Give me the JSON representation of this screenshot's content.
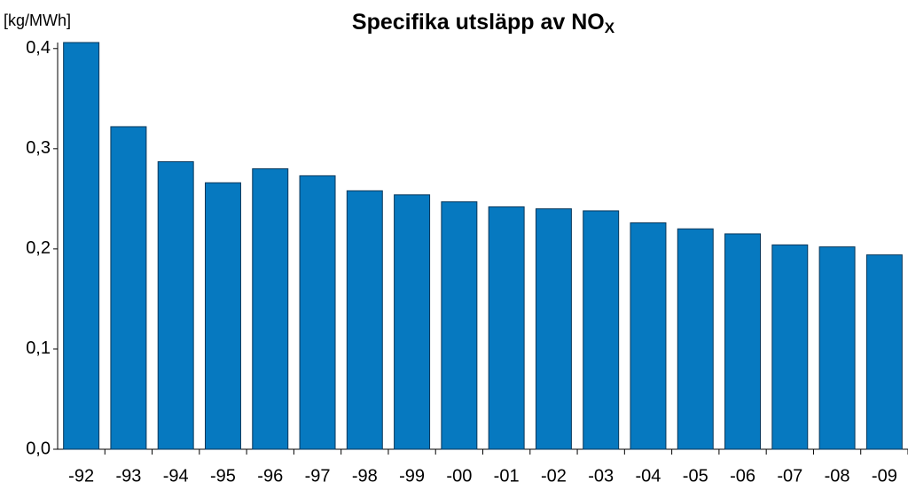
{
  "chart_data": {
    "type": "bar",
    "title": "Specifika utsläpp av NO",
    "title_subscript": "X",
    "y_axis_label": "[kg/MWh]",
    "categories": [
      "-92",
      "-93",
      "-94",
      "-95",
      "-96",
      "-97",
      "-98",
      "-99",
      "-00",
      "-01",
      "-02",
      "-03",
      "-04",
      "-05",
      "-06",
      "-07",
      "-08",
      "-09"
    ],
    "values": [
      0.406,
      0.322,
      0.287,
      0.266,
      0.28,
      0.273,
      0.258,
      0.254,
      0.247,
      0.242,
      0.24,
      0.238,
      0.226,
      0.22,
      0.215,
      0.204,
      0.202,
      0.194
    ],
    "color": "#0679c0",
    "ylim": [
      0,
      0.406
    ],
    "yticks": [
      {
        "value": 0,
        "label": "0,0"
      },
      {
        "value": 0.1,
        "label": "0,1"
      },
      {
        "value": 0.2,
        "label": "0,2"
      },
      {
        "value": 0.3,
        "label": "0,3"
      },
      {
        "value": 0.4,
        "label": "0,4"
      }
    ],
    "grid": false
  }
}
